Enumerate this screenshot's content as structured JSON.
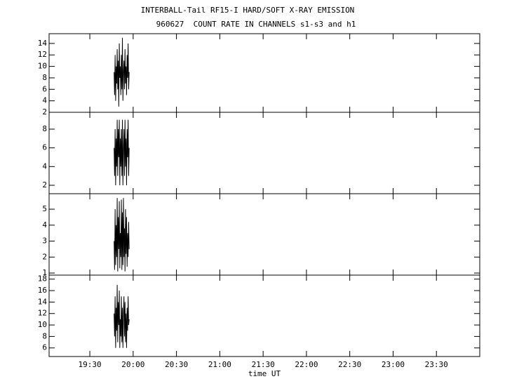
{
  "chart_data": [
    {
      "type": "line",
      "title": "INTERBALL-Tail RF15-I HARD/SOFT X-RAY EMISSION",
      "subtitle": "960627  COUNT RATE IN CHANNELS s1-s3 and h1",
      "color": "#000000",
      "x": [
        19.78,
        19.786,
        19.792,
        19.798,
        19.804,
        19.81,
        19.816,
        19.822,
        19.828,
        19.834,
        19.84,
        19.846,
        19.852,
        19.858,
        19.864,
        19.87,
        19.876,
        19.882,
        19.888,
        19.894,
        19.9,
        19.906,
        19.912,
        19.918,
        19.924,
        19.93,
        19.936,
        19.942,
        19.948,
        19.954
      ],
      "values": [
        9,
        5,
        12,
        4,
        10,
        7,
        13,
        6,
        11,
        3,
        14,
        8,
        10,
        5,
        12,
        6,
        15,
        4,
        9,
        11,
        6,
        13,
        7,
        10,
        5,
        12,
        8,
        14,
        6,
        9
      ],
      "xlim": [
        19.03,
        24.0
      ],
      "ylim": [
        2,
        15.7
      ],
      "yticks": [
        2,
        4,
        6,
        8,
        10,
        12,
        14
      ]
    },
    {
      "type": "line",
      "color": "#000000",
      "x": [
        19.78,
        19.786,
        19.792,
        19.798,
        19.804,
        19.81,
        19.816,
        19.822,
        19.828,
        19.834,
        19.84,
        19.846,
        19.852,
        19.858,
        19.864,
        19.87,
        19.876,
        19.882,
        19.888,
        19.894,
        19.9,
        19.906,
        19.912,
        19.918,
        19.924,
        19.93,
        19.936,
        19.942,
        19.948,
        19.954
      ],
      "values": [
        6,
        3,
        8,
        2,
        7,
        4,
        9,
        3,
        8,
        5,
        9,
        2,
        7,
        4,
        8,
        3,
        9,
        2,
        6,
        8,
        3,
        9,
        4,
        7,
        2,
        8,
        5,
        9,
        3,
        6
      ],
      "xlim": [
        19.03,
        24.0
      ],
      "ylim": [
        1.1,
        9.8
      ],
      "yticks": [
        2,
        4,
        6,
        8
      ]
    },
    {
      "type": "line",
      "color": "#000000",
      "x": [
        19.78,
        19.786,
        19.792,
        19.798,
        19.804,
        19.81,
        19.816,
        19.822,
        19.828,
        19.834,
        19.84,
        19.846,
        19.852,
        19.858,
        19.864,
        19.87,
        19.876,
        19.882,
        19.888,
        19.894,
        19.9,
        19.906,
        19.912,
        19.918,
        19.924,
        19.93,
        19.936,
        19.942,
        19.948,
        19.954
      ],
      "values": [
        3,
        1.2,
        5,
        1.5,
        4,
        2,
        5.7,
        1.1,
        4.5,
        2.5,
        5.5,
        1.3,
        3.5,
        2,
        5.6,
        1.2,
        4.8,
        1.5,
        5.7,
        2,
        3.8,
        1.1,
        5,
        2.2,
        4.5,
        1.4,
        3.5,
        2,
        4.2,
        2.5
      ],
      "xlim": [
        19.03,
        24.0
      ],
      "ylim": [
        0.87,
        5.97
      ],
      "yticks": [
        1,
        2,
        3,
        4,
        5
      ]
    },
    {
      "type": "line",
      "color": "#000000",
      "xlabel": "time UT",
      "x": [
        19.78,
        19.786,
        19.792,
        19.798,
        19.804,
        19.81,
        19.816,
        19.822,
        19.828,
        19.834,
        19.84,
        19.846,
        19.852,
        19.858,
        19.864,
        19.87,
        19.876,
        19.882,
        19.888,
        19.894,
        19.9,
        19.906,
        19.912,
        19.918,
        19.924,
        19.93,
        19.936,
        19.942,
        19.948,
        19.954
      ],
      "values": [
        12,
        8,
        15,
        6,
        13,
        9,
        17,
        7,
        14,
        10,
        16,
        6,
        11,
        8,
        15,
        7,
        13,
        6,
        12,
        15,
        8,
        14,
        7,
        12,
        6,
        13,
        9,
        15,
        10,
        11
      ],
      "xlim": [
        19.03,
        24.0
      ],
      "ylim": [
        4.5,
        18.7
      ],
      "yticks": [
        6,
        8,
        10,
        12,
        14,
        16,
        18
      ],
      "xticks": [
        {
          "value": 19.5,
          "label": "19:30"
        },
        {
          "value": 20.0,
          "label": "20:00"
        },
        {
          "value": 20.5,
          "label": "20:30"
        },
        {
          "value": 21.0,
          "label": "21:00"
        },
        {
          "value": 21.5,
          "label": "21:30"
        },
        {
          "value": 22.0,
          "label": "22:00"
        },
        {
          "value": 22.5,
          "label": "22:30"
        },
        {
          "value": 23.0,
          "label": "23:00"
        },
        {
          "value": 23.5,
          "label": "23:30"
        }
      ]
    }
  ]
}
